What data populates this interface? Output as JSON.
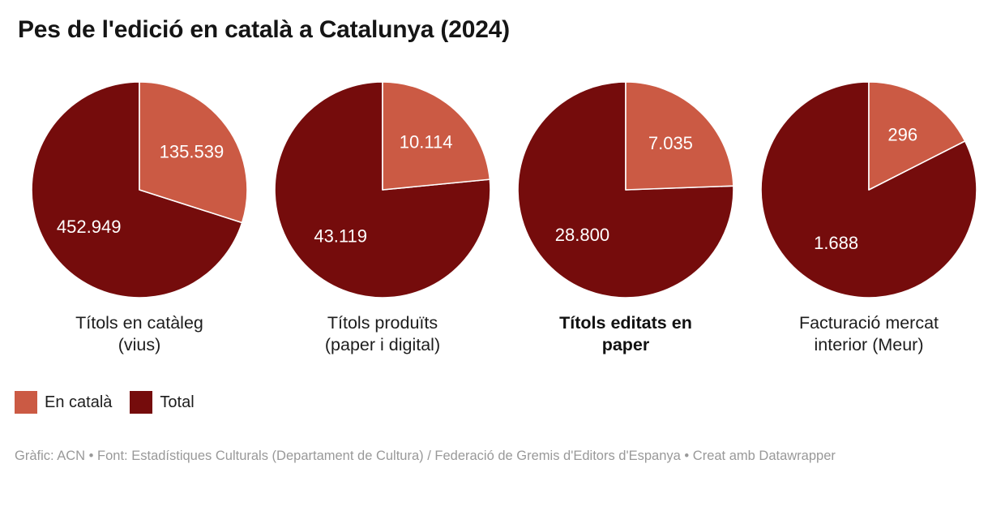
{
  "title": "Pes de l'edició en català a Catalunya (2024)",
  "colors": {
    "en_catala": "#cb5a44",
    "total": "#750c0c",
    "slice_border": "#ffffff",
    "title_text": "#151515",
    "footer_text": "#999999"
  },
  "legend": [
    {
      "label": "En català",
      "color": "#cb5a44"
    },
    {
      "label": "Total",
      "color": "#750c0c"
    }
  ],
  "footer": "Gràfic: ACN • Font: Estadístiques Culturals (Departament de Cultura) / Federació de Gremis d'Editors d'Espanya • Creat amb Datawrapper",
  "chart_data": {
    "type": "pie",
    "title": "Pes de l'edició en català a Catalunya (2024)",
    "series": [
      "En català",
      "Total"
    ],
    "legend_position": "bottom-left",
    "start_angle": "top",
    "direction": "clockwise",
    "pies": [
      {
        "category": "Títols en catàleg (vius)",
        "category_lines": [
          "Títols en catàleg",
          "(vius)"
        ],
        "category_bold": false,
        "en_catala_value": 135539,
        "total_value": 452949,
        "en_catala_display": "135.539",
        "total_display": "452.949"
      },
      {
        "category": "Títols produïts (paper i digital)",
        "category_lines": [
          "Títols produïts",
          "(paper i digital)"
        ],
        "category_bold": false,
        "en_catala_value": 10114,
        "total_value": 43119,
        "en_catala_display": "10.114",
        "total_display": "43.119"
      },
      {
        "category": "Títols editats en paper",
        "category_lines": [
          "Títols editats en",
          "paper"
        ],
        "category_bold": true,
        "en_catala_value": 7035,
        "total_value": 28800,
        "en_catala_display": "7.035",
        "total_display": "28.800"
      },
      {
        "category": "Facturació mercat interior (Meur)",
        "category_lines": [
          "Facturació mercat",
          "interior (Meur)"
        ],
        "category_bold": false,
        "en_catala_value": 296,
        "total_value": 1688,
        "en_catala_display": "296",
        "total_display": "1.688"
      }
    ]
  }
}
